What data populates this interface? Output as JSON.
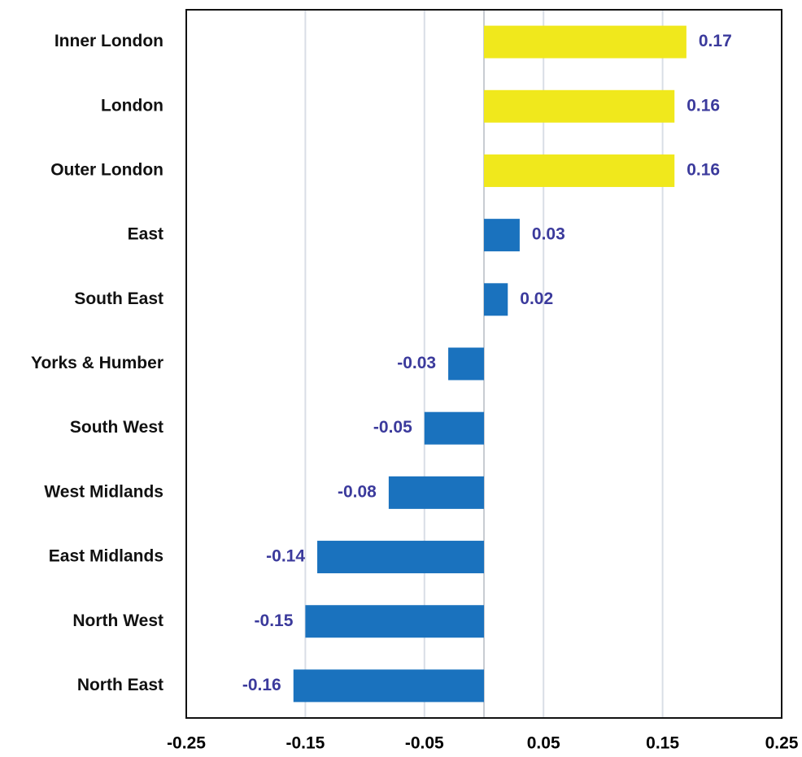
{
  "chart_data": {
    "type": "bar",
    "orientation": "horizontal",
    "categories": [
      "Inner London",
      "London",
      "Outer London",
      "East",
      "South East",
      "Yorks & Humber",
      "South West",
      "West Midlands",
      "East Midlands",
      "North West",
      "North East"
    ],
    "values": [
      0.17,
      0.16,
      0.16,
      0.03,
      0.02,
      -0.03,
      -0.05,
      -0.08,
      -0.14,
      -0.15,
      -0.16
    ],
    "colors": [
      "#f0e81c",
      "#f0e81c",
      "#f0e81c",
      "#1a72be",
      "#1a72be",
      "#1a72be",
      "#1a72be",
      "#1a72be",
      "#1a72be",
      "#1a72be",
      "#1a72be"
    ],
    "xlim": [
      -0.25,
      0.25
    ],
    "xticks": [
      -0.25,
      -0.15,
      -0.05,
      0.05,
      0.15,
      0.25
    ],
    "grid": true
  }
}
